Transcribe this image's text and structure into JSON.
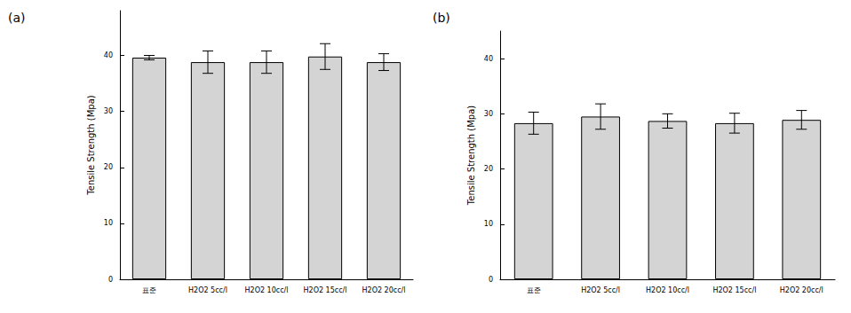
{
  "chart_data": [
    {
      "type": "bar",
      "title": "(a)",
      "y_label": "Tensile Strength (Mpa)",
      "categories": [
        "표준",
        "H2O2 5cc/l",
        "H2O2 10cc/l",
        "H2O2 15cc/l",
        "H2O2 20cc/l"
      ],
      "values": [
        39.6,
        38.8,
        38.8,
        39.8,
        38.8
      ],
      "errors": [
        0.4,
        2.0,
        2.0,
        2.3,
        1.5
      ],
      "color": "#d4d4d4",
      "ylim": [
        0,
        48
      ],
      "yticks": [
        0,
        10,
        20,
        30,
        40
      ],
      "grid": false
    },
    {
      "type": "bar",
      "title": "(b)",
      "y_label": "Tensile Strength (Mpa)",
      "categories": [
        "표준",
        "H2O2 5cc/l",
        "H2O2 10cc/l",
        "H2O2 15cc/l",
        "H2O2 20cc/l"
      ],
      "values": [
        28.3,
        29.5,
        28.7,
        28.3,
        28.9
      ],
      "errors": [
        2.0,
        2.3,
        1.3,
        1.8,
        1.7
      ],
      "color": "#d4d4d4",
      "ylim": [
        0,
        45
      ],
      "yticks": [
        0,
        10,
        20,
        30,
        40
      ],
      "grid": false
    }
  ]
}
